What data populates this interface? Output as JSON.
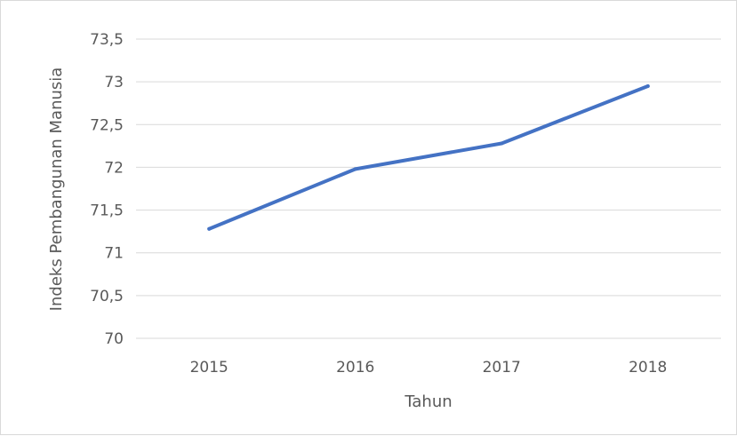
{
  "chart_data": {
    "type": "line",
    "categories": [
      "2015",
      "2016",
      "2017",
      "2018"
    ],
    "series": [
      {
        "values": [
          71.28,
          71.98,
          72.28,
          72.95
        ]
      }
    ],
    "xlabel": "Tahun",
    "ylabel": "Indeks Pembangunan Manusia",
    "ylim": [
      70,
      73.5
    ],
    "yticks": [
      "70",
      "70,5",
      "71",
      "71,5",
      "72",
      "72,5",
      "73",
      "73,5"
    ],
    "grid": true,
    "line_color": "#4472c4"
  }
}
